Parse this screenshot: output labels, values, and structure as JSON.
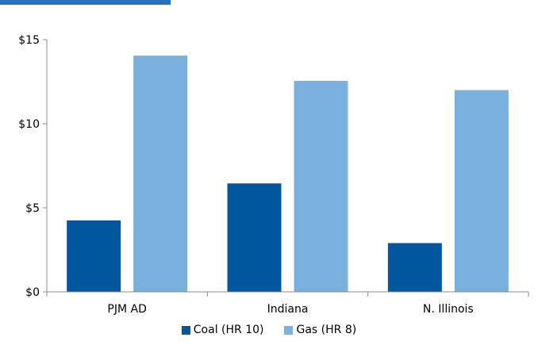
{
  "colors": {
    "accent": "#2e6fb7",
    "coal": "#00579e",
    "gas": "#79b0dc",
    "axis": "#8c8c8c"
  },
  "chart_data": {
    "type": "bar",
    "categories": [
      "PJM AD",
      "Indiana",
      "N. Illinois"
    ],
    "series": [
      {
        "name": "Coal (HR 10)",
        "values": [
          4.25,
          6.45,
          2.9
        ]
      },
      {
        "name": "Gas (HR 8)",
        "values": [
          14.05,
          12.55,
          12.0
        ]
      }
    ],
    "ylim": [
      0,
      15
    ],
    "yticks": [
      0,
      5,
      10,
      15
    ],
    "ytick_labels": [
      "$0",
      "$5",
      "$10",
      "$15"
    ],
    "grid": false,
    "legend_position": "bottom"
  }
}
